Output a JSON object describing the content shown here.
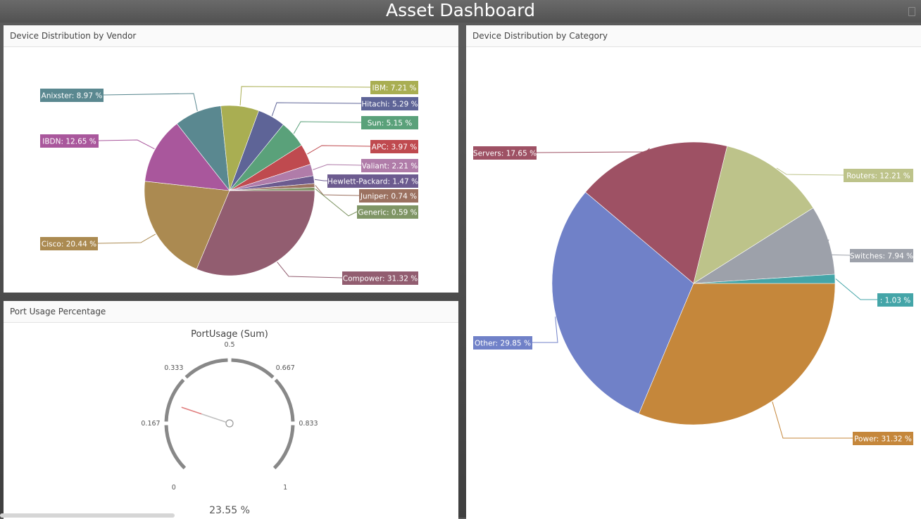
{
  "header": {
    "title": "Asset Dashboard"
  },
  "panels": {
    "vendor": {
      "title": "Device Distribution by Vendor"
    },
    "category": {
      "title": "Device Distribution by Category"
    },
    "port": {
      "title": "Port Usage Percentage"
    }
  },
  "chart_data": [
    {
      "type": "pie",
      "panel": "vendor",
      "title": "",
      "slices": [
        {
          "label": "Compower: 31.32 %",
          "value": 31.32,
          "color": "#925d70"
        },
        {
          "label": "Cisco: 20.44 %",
          "value": 20.44,
          "color": "#ab8a51"
        },
        {
          "label": "IBDN: 12.65 %",
          "value": 12.65,
          "color": "#a9579c"
        },
        {
          "label": "Anixster: 8.97 %",
          "value": 8.97,
          "color": "#5a8890"
        },
        {
          "label": "IBM: 7.21 %",
          "value": 7.21,
          "color": "#a9ae52"
        },
        {
          "label": "Hitachi: 5.29 %",
          "value": 5.29,
          "color": "#5e6497"
        },
        {
          "label": "Sun: 5.15 %",
          "value": 5.15,
          "color": "#5aa17a"
        },
        {
          "label": "APC: 3.97 %",
          "value": 3.97,
          "color": "#bf4a4f"
        },
        {
          "label": "Valiant: 2.21 %",
          "value": 2.21,
          "color": "#b07ca9"
        },
        {
          "label": "Hewlett-Packard: 1.47 %",
          "value": 1.47,
          "color": "#6c5b8f"
        },
        {
          "label": "Juniper: 0.74 %",
          "value": 0.74,
          "color": "#9b7160"
        },
        {
          "label": "Generic: 0.59 %",
          "value": 0.59,
          "color": "#7f9565"
        }
      ]
    },
    {
      "type": "pie",
      "panel": "category",
      "title": "",
      "slices": [
        {
          "label": "Power: 31.32 %",
          "value": 31.32,
          "color": "#c5873b"
        },
        {
          "label": "Other: 29.85 %",
          "value": 29.85,
          "color": "#7081c8"
        },
        {
          "label": "Servers: 17.65 %",
          "value": 17.65,
          "color": "#9e5164"
        },
        {
          "label": "Routers: 12.21 %",
          "value": 12.21,
          "color": "#bdc38a"
        },
        {
          "label": "Switches: 7.94 %",
          "value": 7.94,
          "color": "#9da1aa"
        },
        {
          "label": ": 1.03 %",
          "value": 1.03,
          "color": "#44a5a8"
        }
      ]
    },
    {
      "type": "gauge",
      "panel": "port",
      "title": "PortUsage (Sum)",
      "min": 0,
      "max": 1,
      "ticks": [
        "0",
        "0.167",
        "0.333",
        "0.5",
        "0.667",
        "0.833",
        "1"
      ],
      "value": 0.2355,
      "value_label": "23.55 %",
      "colors": {
        "arc": "#888888",
        "needle": "#c0c0c0",
        "needle_tip": "#e07d7d"
      }
    }
  ]
}
